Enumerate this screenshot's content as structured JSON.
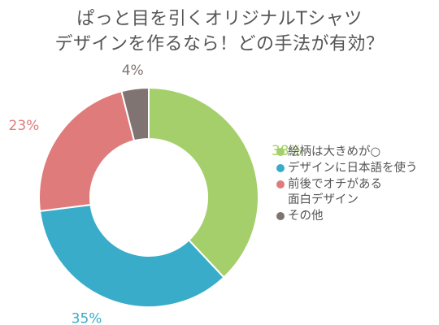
{
  "chart_data": {
    "type": "pie",
    "title_lines": [
      "ぱっと目を引くオリジナルTシャツ",
      "デザインを作るなら！どの手法が有効？"
    ],
    "categories": [
      "絵柄は大きめが○",
      "デザインに日本語を使う",
      "前後でオチがある\n面白デザイン",
      "その他"
    ],
    "values": [
      38,
      35,
      23,
      4
    ],
    "value_labels": [
      "38%",
      "35%",
      "23%",
      "4%"
    ],
    "colors": [
      "#a5cf6b",
      "#38acc9",
      "#e07b7b",
      "#7f7472"
    ],
    "legend_position": "right"
  }
}
